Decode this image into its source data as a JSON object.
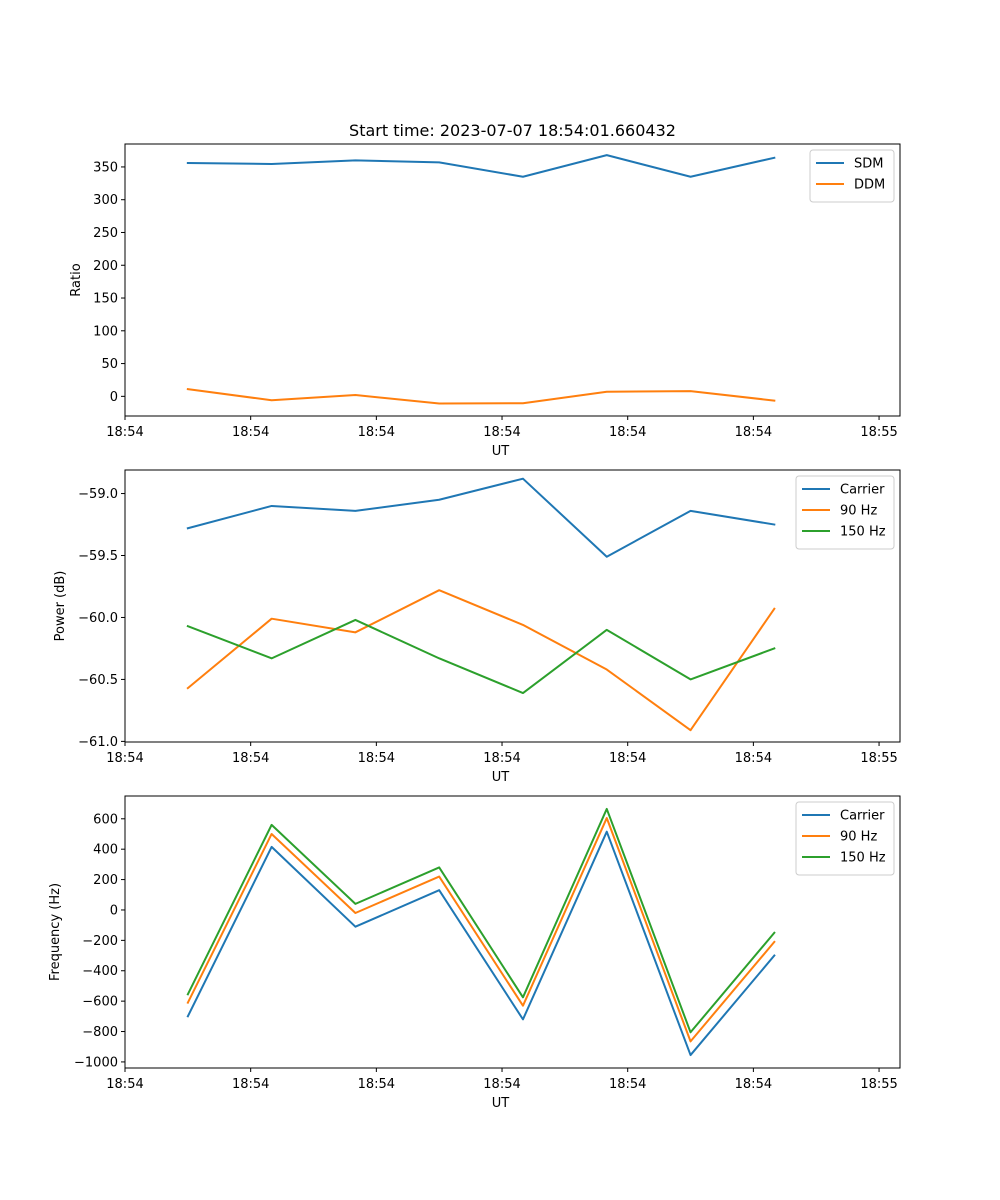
{
  "title": "Start time: 2023-07-07 18:54:01.660432",
  "chart_data": [
    {
      "type": "line",
      "title": "Start time: 2023-07-07 18:54:01.660432",
      "xlabel": "UT",
      "ylabel": "Ratio",
      "x": [
        1,
        2,
        3,
        4,
        5,
        6,
        7,
        8
      ],
      "xlim": [
        0.25,
        9.5
      ],
      "xticks": [
        0.25,
        1.75,
        3.25,
        4.75,
        6.25,
        7.75,
        9.25
      ],
      "xtick_labels": [
        "18:54",
        "18:54",
        "18:54",
        "18:54",
        "18:54",
        "18:54",
        "18:55"
      ],
      "ylim": [
        -30,
        385
      ],
      "yticks": [
        0,
        50,
        100,
        150,
        200,
        250,
        300,
        350
      ],
      "ytick_labels": [
        "0",
        "50",
        "100",
        "150",
        "200",
        "250",
        "300",
        "350"
      ],
      "legend": "top-right",
      "series": [
        {
          "name": "SDM",
          "color": "#1f77b4",
          "values": [
            356,
            354.5,
            360,
            357,
            335,
            368,
            335,
            364
          ]
        },
        {
          "name": "DDM",
          "color": "#ff7f0e",
          "values": [
            11,
            -6,
            2,
            -11,
            -10.5,
            7,
            8,
            -6.5
          ]
        }
      ]
    },
    {
      "type": "line",
      "title": "",
      "xlabel": "UT",
      "ylabel": "Power (dB)",
      "x": [
        1,
        2,
        3,
        4,
        5,
        6,
        7,
        8
      ],
      "xlim": [
        0.25,
        9.5
      ],
      "xticks": [
        0.25,
        1.75,
        3.25,
        4.75,
        6.25,
        7.75,
        9.25
      ],
      "xtick_labels": [
        "18:54",
        "18:54",
        "18:54",
        "18:54",
        "18:54",
        "18:54",
        "18:55"
      ],
      "ylim": [
        -61.005,
        -58.81
      ],
      "yticks": [
        -61.0,
        -60.5,
        -60.0,
        -59.5,
        -59.0
      ],
      "ytick_labels": [
        "−61.0",
        "−60.5",
        "−60.0",
        "−59.5",
        "−59.0"
      ],
      "legend": "top-right",
      "series": [
        {
          "name": "Carrier",
          "color": "#1f77b4",
          "values": [
            -59.28,
            -59.1,
            -59.14,
            -59.05,
            -58.88,
            -59.51,
            -59.14,
            -59.25
          ]
        },
        {
          "name": "90 Hz",
          "color": "#ff7f0e",
          "values": [
            -60.57,
            -60.01,
            -60.12,
            -59.78,
            -60.06,
            -60.42,
            -60.91,
            -59.93
          ]
        },
        {
          "name": "150 Hz",
          "color": "#2ca02c",
          "values": [
            -60.07,
            -60.33,
            -60.02,
            -60.33,
            -60.61,
            -60.1,
            -60.5,
            -60.25
          ]
        }
      ]
    },
    {
      "type": "line",
      "title": "",
      "xlabel": "UT",
      "ylabel": "Frequency (Hz)",
      "x": [
        1,
        2,
        3,
        4,
        5,
        6,
        7,
        8
      ],
      "xlim": [
        0.25,
        9.5
      ],
      "xticks": [
        0.25,
        1.75,
        3.25,
        4.75,
        6.25,
        7.75,
        9.25
      ],
      "xtick_labels": [
        "18:54",
        "18:54",
        "18:54",
        "18:54",
        "18:54",
        "18:54",
        "18:55"
      ],
      "ylim": [
        -1040,
        750
      ],
      "yticks": [
        -1000,
        -800,
        -600,
        -400,
        -200,
        0,
        200,
        400,
        600
      ],
      "ytick_labels": [
        "−1000",
        "−800",
        "−600",
        "−400",
        "−200",
        "0",
        "200",
        "400",
        "600"
      ],
      "legend": "top-right",
      "series": [
        {
          "name": "Carrier",
          "color": "#1f77b4",
          "values": [
            -700,
            415,
            -110,
            130,
            -720,
            515,
            -955,
            -300
          ]
        },
        {
          "name": "90 Hz",
          "color": "#ff7f0e",
          "values": [
            -610,
            500,
            -20,
            220,
            -630,
            605,
            -865,
            -210
          ]
        },
        {
          "name": "150 Hz",
          "color": "#2ca02c",
          "values": [
            -555,
            560,
            40,
            280,
            -575,
            665,
            -805,
            -150
          ]
        }
      ]
    }
  ]
}
